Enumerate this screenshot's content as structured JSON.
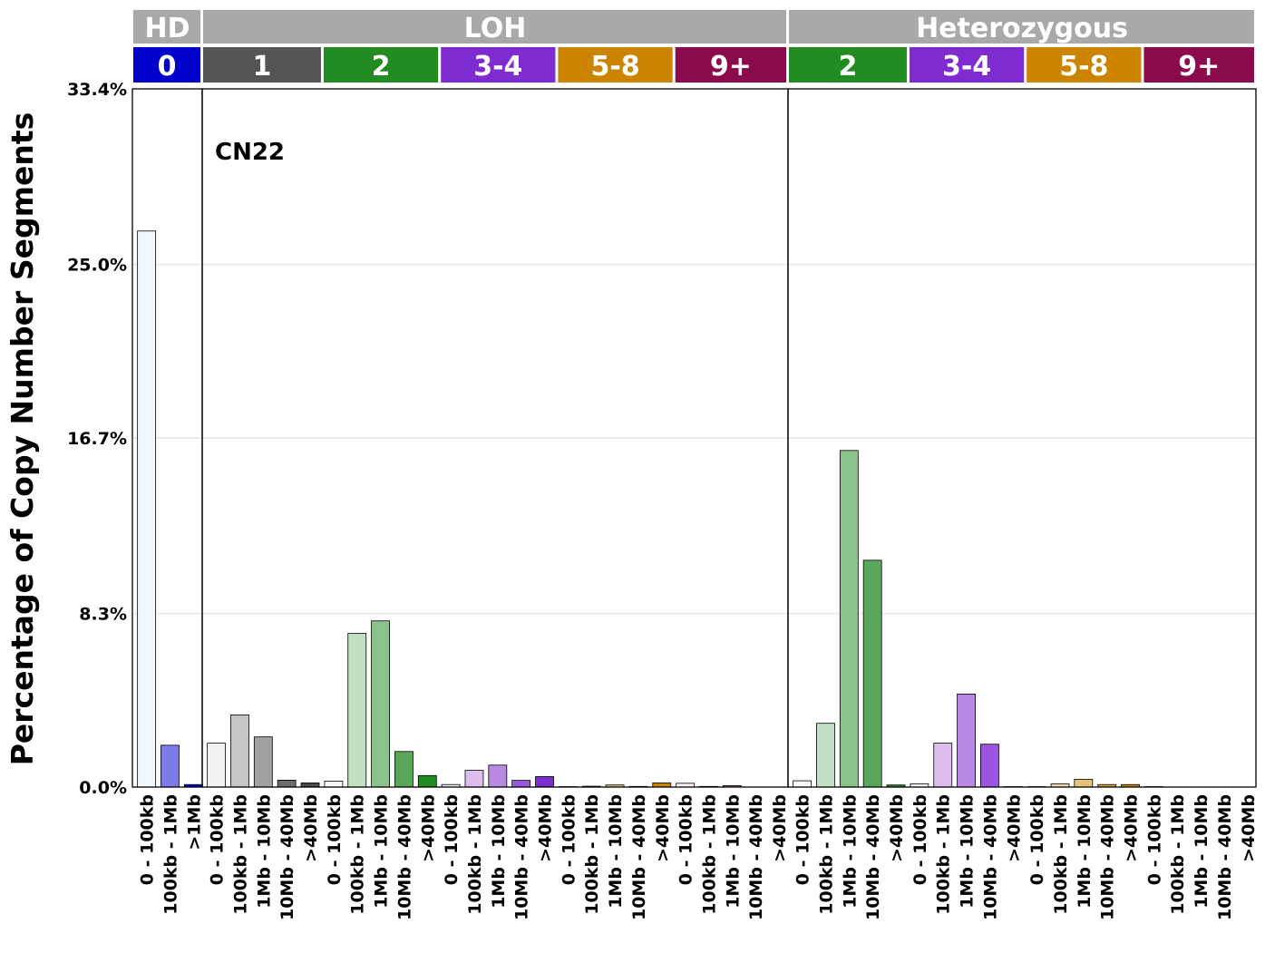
{
  "chart_data": {
    "type": "bar",
    "ylabel": "Percentage of Copy Number Segments",
    "annotation": "CN22",
    "ylim": [
      0,
      33.4
    ],
    "y_ticks": [
      "0.0%",
      "8.3%",
      "16.7%",
      "25.0%",
      "33.4%"
    ],
    "y_tick_values": [
      0,
      8.3,
      16.7,
      25.0,
      33.4
    ],
    "grid": "horizontal",
    "size_labels": [
      "0 - 100kb",
      "100kb - 1Mb",
      "1Mb - 10Mb",
      "10Mb - 40Mb",
      ">40Mb"
    ],
    "hd_size_labels": [
      "0 - 100kb",
      "100kb - 1Mb",
      ">1Mb"
    ],
    "top_strips": [
      {
        "label": "HD",
        "bars": 3
      },
      {
        "label": "LOH",
        "bars": 25
      },
      {
        "label": "Heterozygous",
        "bars": 20
      }
    ],
    "groups": [
      {
        "label": "0",
        "color": "#0000cc",
        "section": "HD",
        "size_labels": "hd",
        "values": [
          26.6,
          2.0,
          0.12
        ],
        "bar_colors": [
          "#f0f8ff",
          "#7b7bea",
          "#0000cc"
        ]
      },
      {
        "label": "1",
        "color": "#555555",
        "section": "LOH",
        "size_labels": "std",
        "values": [
          2.1,
          3.45,
          2.4,
          0.33,
          0.2
        ],
        "bar_colors": [
          "#f1f1f1",
          "#c6c6c6",
          "#a1a1a1",
          "#6b6b6b",
          "#4a4a4a"
        ]
      },
      {
        "label": "2",
        "color": "#228b22",
        "section": "LOH",
        "size_labels": "std",
        "values": [
          0.28,
          7.35,
          7.95,
          1.7,
          0.55
        ],
        "bar_colors": [
          "#f4fbf4",
          "#c2e0c2",
          "#8cc38c",
          "#5aa75a",
          "#228b22"
        ]
      },
      {
        "label": "3-4",
        "color": "#7e2bd2",
        "section": "LOH",
        "size_labels": "std",
        "values": [
          0.12,
          0.8,
          1.05,
          0.32,
          0.5
        ],
        "bar_colors": [
          "#f8f2fd",
          "#dcbdee",
          "#b88ae4",
          "#9a56dc",
          "#7e2bd2"
        ]
      },
      {
        "label": "5-8",
        "color": "#cc8400",
        "section": "LOH",
        "size_labels": "std",
        "values": [
          0.02,
          0.04,
          0.1,
          0.03,
          0.2
        ],
        "bar_colors": [
          "#fdf7ec",
          "#f2dcae",
          "#e6c277",
          "#d9a43a",
          "#cc8400"
        ]
      },
      {
        "label": "9+",
        "color": "#8b0a4c",
        "section": "LOH",
        "size_labels": "std",
        "values": [
          0.18,
          0.03,
          0.07,
          0.0,
          0.0
        ],
        "bar_colors": [
          "#fdeef4",
          "#e6b3ca",
          "#c77899",
          "#a73d6f",
          "#8b0a4c"
        ]
      },
      {
        "label": "2",
        "color": "#228b22",
        "section": "Heterozygous",
        "size_labels": "std",
        "values": [
          0.3,
          3.05,
          16.1,
          10.85,
          0.1
        ],
        "bar_colors": [
          "#f4fbf4",
          "#c2e0c2",
          "#8cc38c",
          "#5aa75a",
          "#228b22"
        ]
      },
      {
        "label": "3-4",
        "color": "#7e2bd2",
        "section": "Heterozygous",
        "size_labels": "std",
        "values": [
          0.15,
          2.1,
          4.45,
          2.05,
          0.02
        ],
        "bar_colors": [
          "#f8f2fd",
          "#dcbdee",
          "#b88ae4",
          "#9a56dc",
          "#7e2bd2"
        ]
      },
      {
        "label": "5-8",
        "color": "#cc8400",
        "section": "Heterozygous",
        "size_labels": "std",
        "values": [
          0.02,
          0.15,
          0.37,
          0.12,
          0.12
        ],
        "bar_colors": [
          "#fdf7ec",
          "#f2dcae",
          "#e6c277",
          "#d9a43a",
          "#cc8400"
        ]
      },
      {
        "label": "9+",
        "color": "#8b0a4c",
        "section": "Heterozygous",
        "size_labels": "std",
        "values": [
          0.02,
          0.0,
          0.0,
          0.0,
          0.0
        ],
        "bar_colors": [
          "#fdeef4",
          "#e6b3ca",
          "#c77899",
          "#a73d6f",
          "#8b0a4c"
        ]
      }
    ],
    "strip_color": "#a9a9a9",
    "grid_color": "#ebebeb"
  }
}
